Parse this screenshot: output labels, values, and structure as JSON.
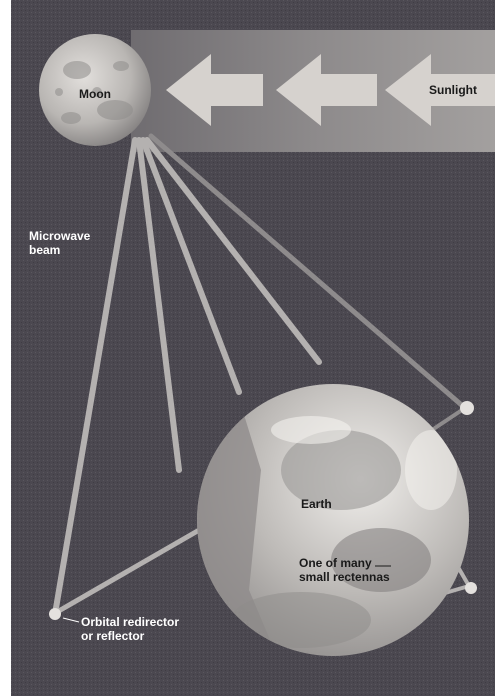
{
  "diagram": {
    "labels": {
      "moon": "Moon",
      "sunlight": "Sunlight",
      "microwave_beam_line1": "Microwave",
      "microwave_beam_line2": "beam",
      "earth": "Earth",
      "rectenna_line1": "One of many",
      "rectenna_line2": "small rectennas",
      "redirector_line1": "Orbital redirector",
      "redirector_line2": "or reflector"
    },
    "colors": {
      "background": "#4b4850",
      "beam": "#b4b1b0",
      "sunlight_band": "#8a8788",
      "arrow": "#d6d2ce",
      "moon": "#c9c6c3",
      "earth_light": "#dcdad7",
      "earth_dark": "#6c6a6b",
      "label_light": "#ffffff",
      "label_dark": "#1a1a1a"
    }
  }
}
